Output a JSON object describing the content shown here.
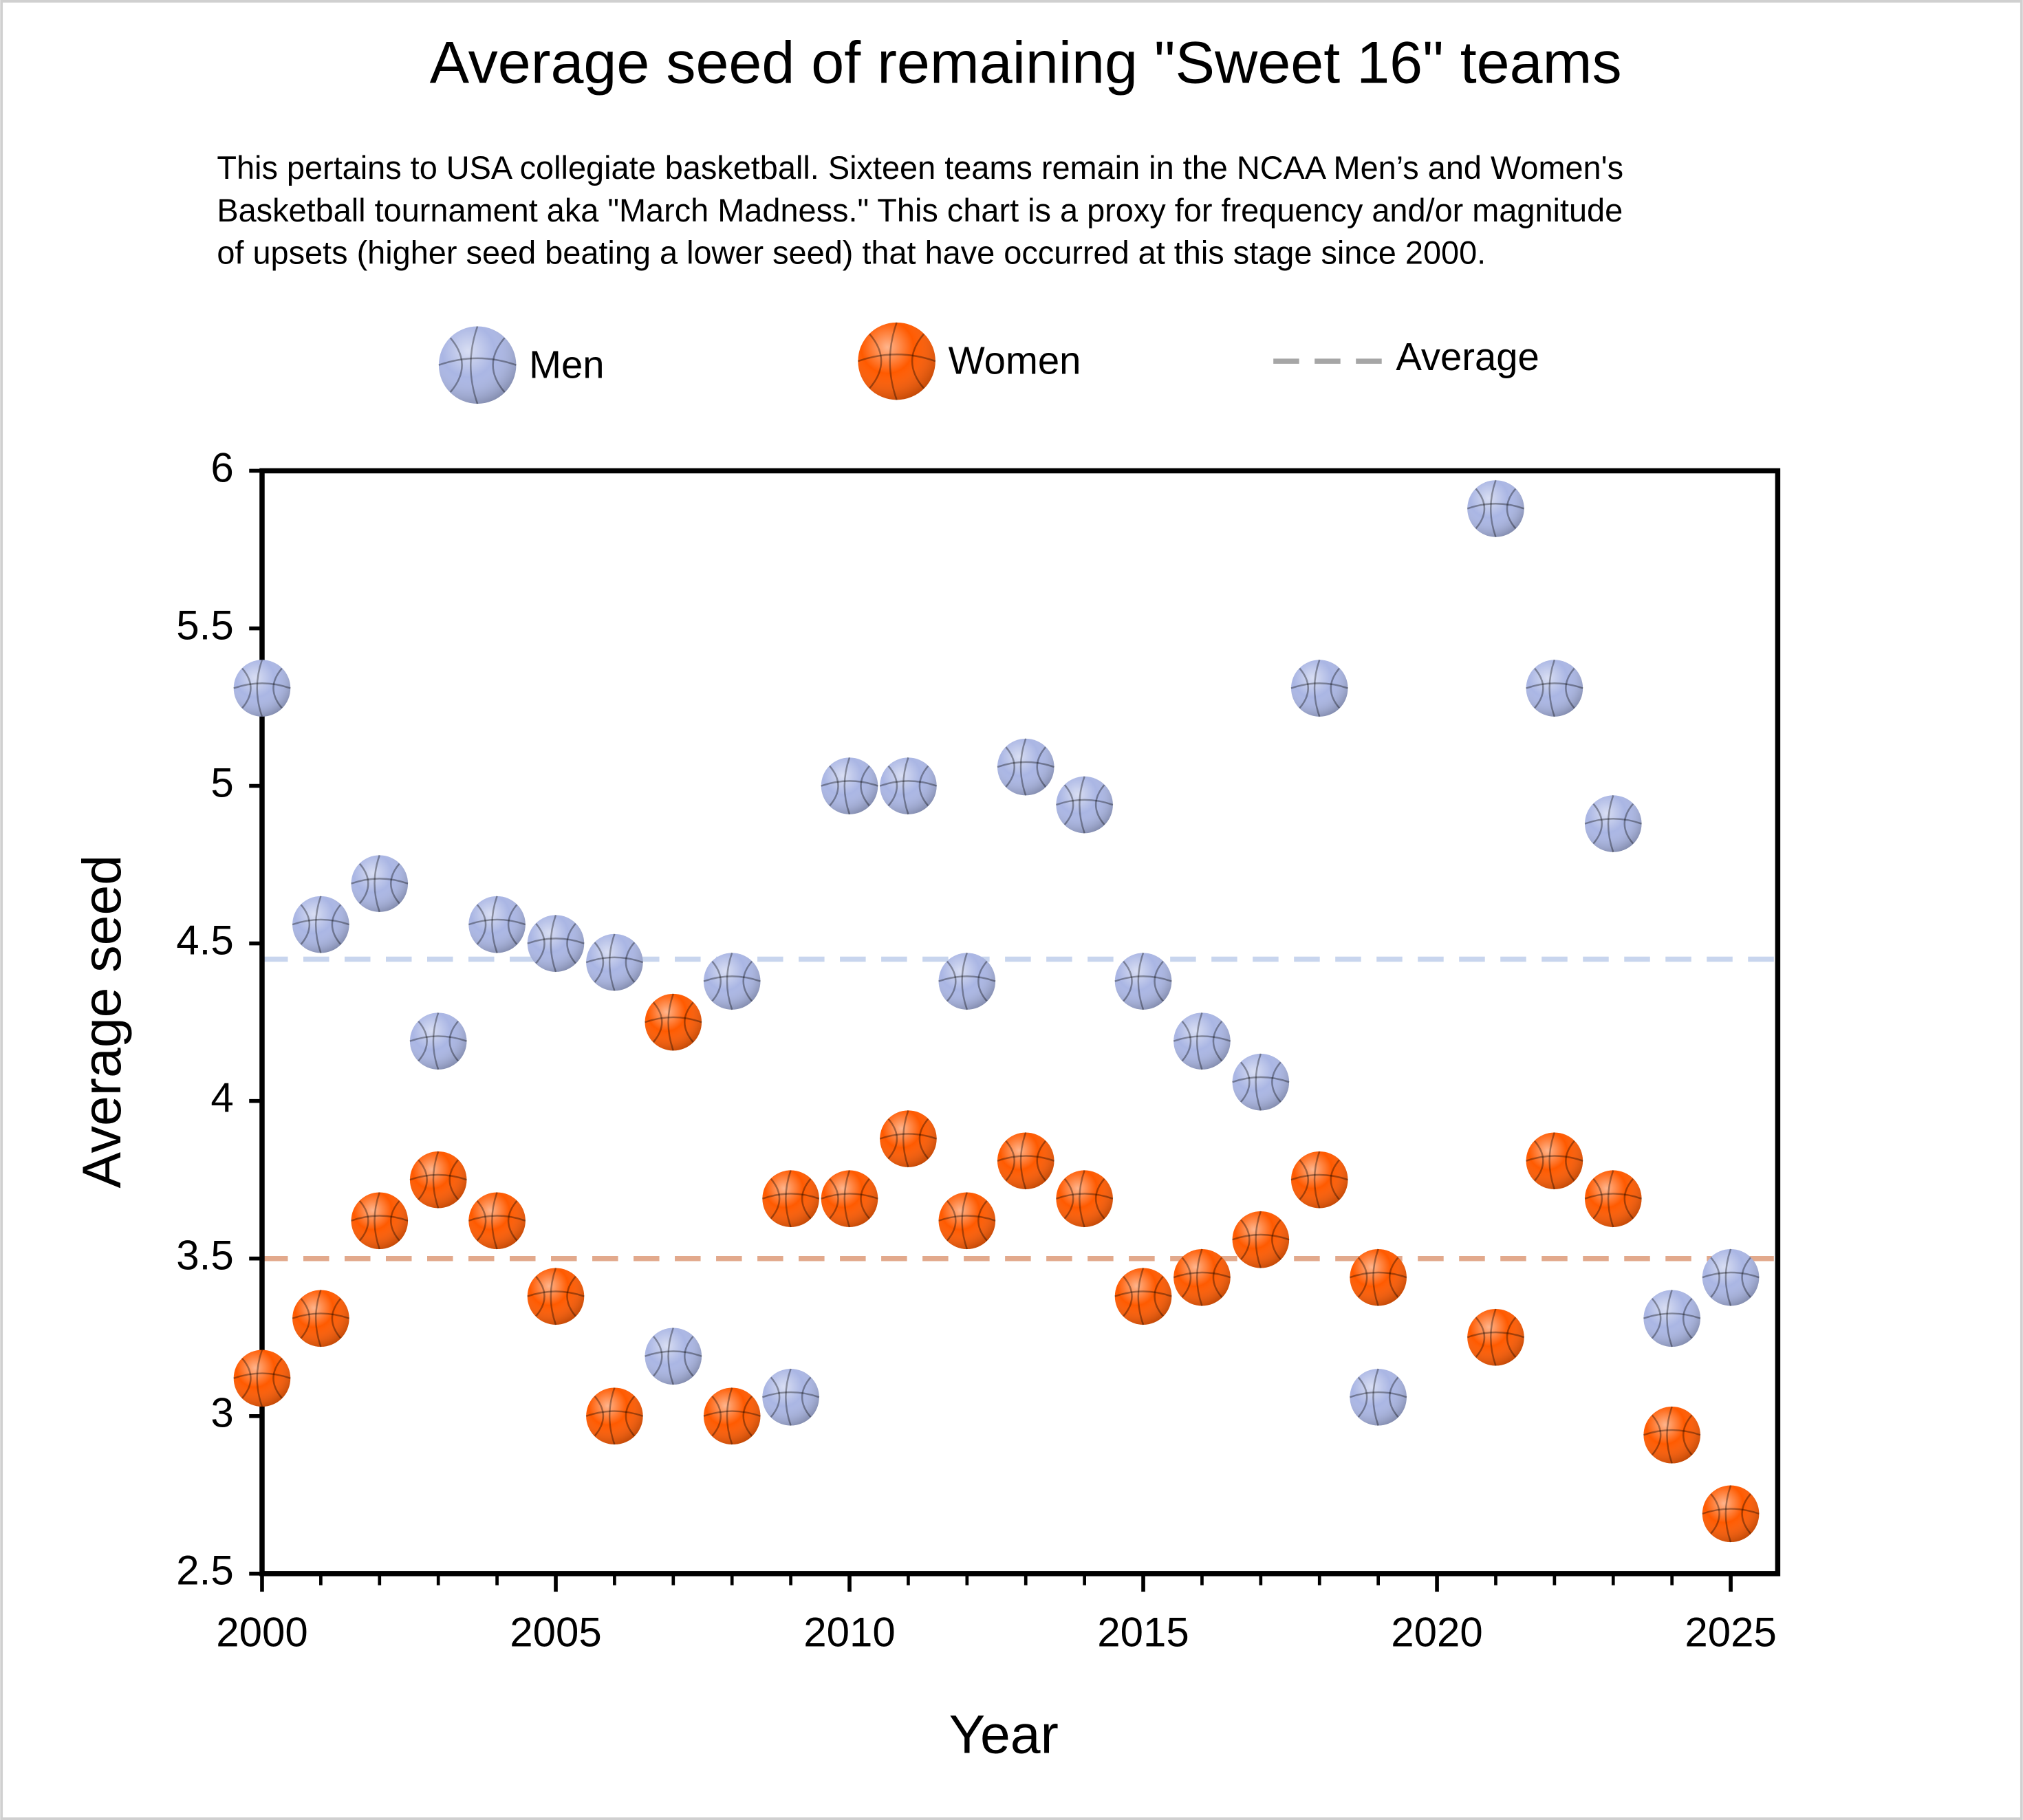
{
  "chart_data": {
    "type": "scatter",
    "title": "Average seed of remaining \"Sweet 16\" teams",
    "subtitle": [
      "This pertains to USA collegiate basketball. Sixteen teams remain in the NCAA Men’s and Women's",
      "Basketball tournament aka \"March Madness.\" This chart is a proxy for frequency and/or magnitude",
      "of upsets (higher seed beating a lower seed) that have occurred at this stage since 2000."
    ],
    "x_label": "Year",
    "y_label": "Average seed",
    "x": [
      2000,
      2001,
      2002,
      2003,
      2004,
      2005,
      2006,
      2007,
      2008,
      2009,
      2010,
      2011,
      2012,
      2013,
      2014,
      2015,
      2016,
      2017,
      2018,
      2019,
      2020,
      2021,
      2022,
      2023,
      2024,
      2025
    ],
    "series": [
      {
        "name": "Men",
        "color": "#aab6e4",
        "values": [
          5.31,
          4.56,
          4.69,
          4.19,
          4.56,
          4.5,
          4.44,
          3.19,
          4.38,
          3.06,
          5.0,
          5.0,
          4.38,
          5.06,
          4.94,
          4.38,
          4.19,
          4.06,
          5.31,
          3.06,
          null,
          5.88,
          5.31,
          4.88,
          3.31,
          3.44
        ]
      },
      {
        "name": "Women",
        "color": "#ff5a00",
        "values": [
          3.12,
          3.31,
          3.62,
          3.75,
          3.62,
          3.38,
          3.0,
          4.25,
          3.0,
          3.69,
          3.69,
          3.88,
          3.62,
          3.81,
          3.69,
          3.38,
          3.44,
          3.56,
          3.75,
          3.44,
          null,
          3.25,
          3.81,
          3.69,
          2.94,
          2.69
        ]
      }
    ],
    "average_lines": {
      "label": "Average",
      "legend_color": "#a6a6a6",
      "colors": [
        "#c8d5ee",
        "#e2a98c"
      ],
      "values": [
        4.45,
        3.5
      ]
    },
    "xlim": [
      2000,
      2025.8
    ],
    "ylim": [
      2.5,
      6
    ],
    "xticks": [
      2000,
      2005,
      2010,
      2015,
      2020,
      2025
    ],
    "x_minor_step": 1,
    "yticks": [
      2.5,
      3,
      3.5,
      4,
      4.5,
      5,
      5.5,
      6
    ]
  }
}
